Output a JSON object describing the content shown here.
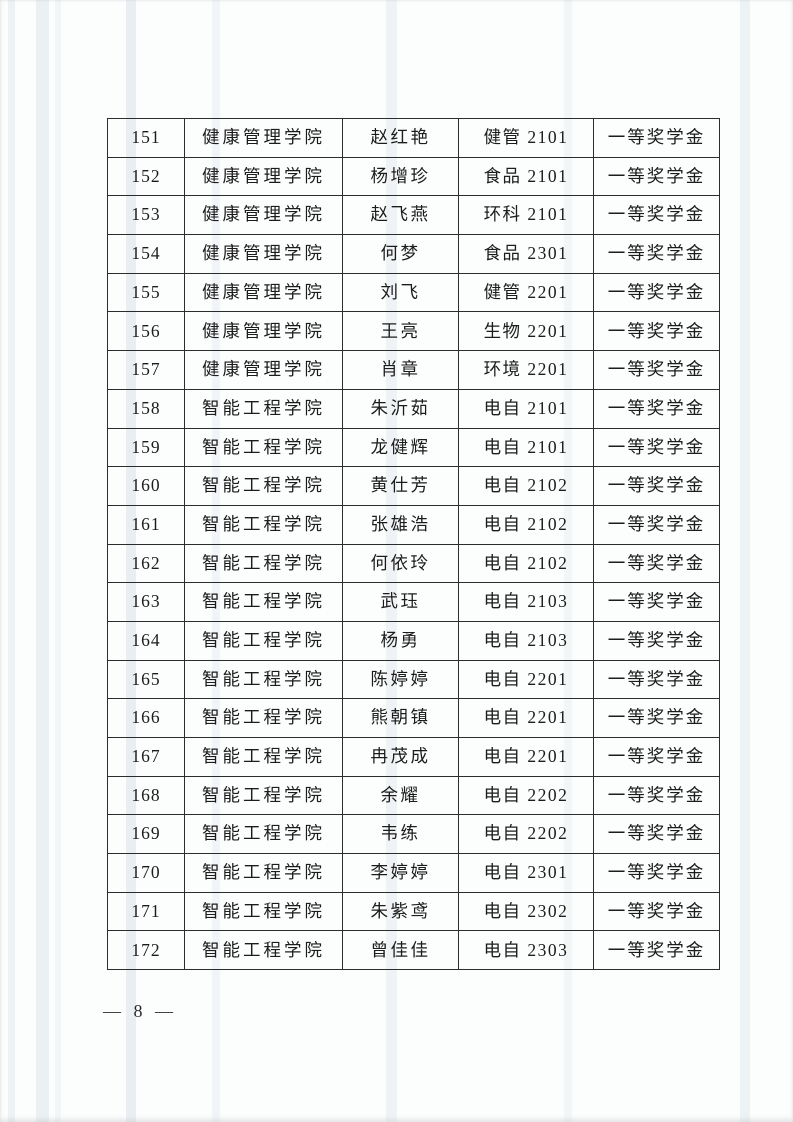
{
  "footer": {
    "page_label": "— 8 —"
  },
  "table": {
    "award_text_color": "#1c1c1c",
    "border_color": "#2c2c2c",
    "rows": [
      {
        "no": "151",
        "college": "健康管理学院",
        "name": "赵红艳",
        "class": "健管 2101",
        "award": "一等奖学金"
      },
      {
        "no": "152",
        "college": "健康管理学院",
        "name": "杨增珍",
        "class": "食品 2101",
        "award": "一等奖学金"
      },
      {
        "no": "153",
        "college": "健康管理学院",
        "name": "赵飞燕",
        "class": "环科 2101",
        "award": "一等奖学金"
      },
      {
        "no": "154",
        "college": "健康管理学院",
        "name": "何梦",
        "class": "食品 2301",
        "award": "一等奖学金"
      },
      {
        "no": "155",
        "college": "健康管理学院",
        "name": "刘飞",
        "class": "健管 2201",
        "award": "一等奖学金"
      },
      {
        "no": "156",
        "college": "健康管理学院",
        "name": "王亮",
        "class": "生物 2201",
        "award": "一等奖学金"
      },
      {
        "no": "157",
        "college": "健康管理学院",
        "name": "肖章",
        "class": "环境 2201",
        "award": "一等奖学金"
      },
      {
        "no": "158",
        "college": "智能工程学院",
        "name": "朱沂茹",
        "class": "电自 2101",
        "award": "一等奖学金"
      },
      {
        "no": "159",
        "college": "智能工程学院",
        "name": "龙健辉",
        "class": "电自 2101",
        "award": "一等奖学金"
      },
      {
        "no": "160",
        "college": "智能工程学院",
        "name": "黄仕芳",
        "class": "电自 2102",
        "award": "一等奖学金"
      },
      {
        "no": "161",
        "college": "智能工程学院",
        "name": "张雄浩",
        "class": "电自 2102",
        "award": "一等奖学金"
      },
      {
        "no": "162",
        "college": "智能工程学院",
        "name": "何依玲",
        "class": "电自 2102",
        "award": "一等奖学金"
      },
      {
        "no": "163",
        "college": "智能工程学院",
        "name": "武珏",
        "class": "电自 2103",
        "award": "一等奖学金"
      },
      {
        "no": "164",
        "college": "智能工程学院",
        "name": "杨勇",
        "class": "电自 2103",
        "award": "一等奖学金"
      },
      {
        "no": "165",
        "college": "智能工程学院",
        "name": "陈婷婷",
        "class": "电自 2201",
        "award": "一等奖学金"
      },
      {
        "no": "166",
        "college": "智能工程学院",
        "name": "熊朝镇",
        "class": "电自 2201",
        "award": "一等奖学金"
      },
      {
        "no": "167",
        "college": "智能工程学院",
        "name": "冉茂成",
        "class": "电自 2201",
        "award": "一等奖学金"
      },
      {
        "no": "168",
        "college": "智能工程学院",
        "name": "余耀",
        "class": "电自 2202",
        "award": "一等奖学金"
      },
      {
        "no": "169",
        "college": "智能工程学院",
        "name": "韦练",
        "class": "电自 2202",
        "award": "一等奖学金"
      },
      {
        "no": "170",
        "college": "智能工程学院",
        "name": "李婷婷",
        "class": "电自 2301",
        "award": "一等奖学金"
      },
      {
        "no": "171",
        "college": "智能工程学院",
        "name": "朱紫鸢",
        "class": "电自 2302",
        "award": "一等奖学金"
      },
      {
        "no": "172",
        "college": "智能工程学院",
        "name": "曾佳佳",
        "class": "电自 2303",
        "award": "一等奖学金"
      }
    ]
  }
}
